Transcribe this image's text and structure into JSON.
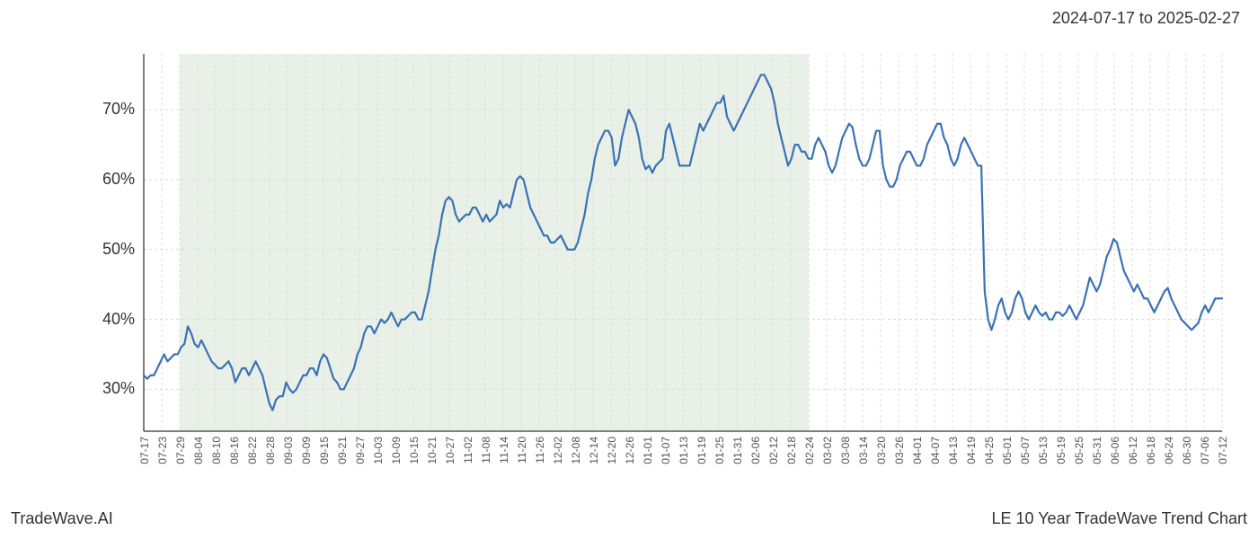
{
  "date_range_label": "2024-07-17 to 2025-02-27",
  "footer_left": "TradeWave.AI",
  "footer_right": "LE 10 Year TradeWave Trend Chart",
  "chart": {
    "type": "line",
    "background_color": "#ffffff",
    "shaded_region_color": "#dfeadd",
    "shaded_region_opacity": 0.7,
    "grid_color": "#dcdcdc",
    "grid_dash": "3,3",
    "axis_color": "#555555",
    "line_color": "#3a72b5",
    "line_width": 2.2,
    "y_axis": {
      "min": 24,
      "max": 78,
      "ticks": [
        30,
        40,
        50,
        60,
        70
      ],
      "tick_labels": [
        "30%",
        "40%",
        "50%",
        "60%",
        "70%"
      ],
      "label_fontsize": 18,
      "label_color": "#333333"
    },
    "x_axis": {
      "label_fontsize": 12,
      "label_color": "#555555",
      "tick_labels": [
        "07-17",
        "07-23",
        "07-29",
        "08-04",
        "08-10",
        "08-16",
        "08-22",
        "08-28",
        "09-03",
        "09-09",
        "09-15",
        "09-21",
        "09-27",
        "10-03",
        "10-09",
        "10-15",
        "10-21",
        "10-27",
        "11-02",
        "11-08",
        "11-14",
        "11-20",
        "11-26",
        "12-02",
        "12-08",
        "12-14",
        "12-20",
        "12-26",
        "01-01",
        "01-07",
        "01-13",
        "01-19",
        "01-25",
        "01-31",
        "02-06",
        "02-12",
        "02-18",
        "02-24",
        "03-02",
        "03-08",
        "03-14",
        "03-20",
        "03-26",
        "04-01",
        "04-07",
        "04-13",
        "04-19",
        "04-25",
        "05-01",
        "05-07",
        "05-13",
        "05-19",
        "05-25",
        "05-31",
        "06-06",
        "06-12",
        "06-18",
        "06-24",
        "06-30",
        "07-06",
        "07-12"
      ]
    },
    "shaded_start_index": 2,
    "shaded_end_index": 37,
    "series": [
      32,
      31.5,
      32,
      32,
      33,
      34,
      35,
      34,
      34.5,
      35,
      35,
      36,
      36.5,
      39,
      38,
      36.5,
      36,
      37,
      36,
      35,
      34,
      33.5,
      33,
      33,
      33.5,
      34,
      33,
      31,
      32,
      33,
      33,
      32,
      33,
      34,
      33,
      32,
      30,
      28,
      27,
      28.5,
      29,
      29,
      31,
      30,
      29.5,
      30,
      31,
      32,
      32,
      33,
      33,
      32,
      34,
      35,
      34.5,
      33,
      31.5,
      31,
      30,
      30,
      31,
      32,
      33,
      35,
      36,
      38,
      39,
      39,
      38,
      39,
      40,
      39.5,
      40,
      41,
      40,
      39,
      40,
      40,
      40.5,
      41,
      41,
      40,
      40,
      42,
      44,
      47,
      50,
      52,
      55,
      57,
      57.5,
      57,
      55,
      54,
      54.5,
      55,
      55,
      56,
      56,
      55,
      54,
      55,
      54,
      54.5,
      55,
      57,
      56,
      56.5,
      56,
      58,
      60,
      60.5,
      60,
      58,
      56,
      55,
      54,
      53,
      52,
      52,
      51,
      51,
      51.5,
      52,
      51,
      50,
      50,
      50,
      51,
      53,
      55,
      58,
      60,
      63,
      65,
      66,
      67,
      67,
      66,
      62,
      63,
      66,
      68,
      70,
      69,
      68,
      66,
      63,
      61.5,
      62,
      61,
      62,
      62.5,
      63,
      67,
      68,
      66,
      64,
      62,
      62,
      62,
      62,
      64,
      66,
      68,
      67,
      68,
      69,
      70,
      71,
      71,
      72,
      69,
      68,
      67,
      68,
      69,
      70,
      71,
      72,
      73,
      74,
      75,
      75,
      74,
      73,
      71,
      68,
      66,
      64,
      62,
      63,
      65,
      65,
      64,
      64,
      63,
      63,
      65,
      66,
      65,
      64,
      62,
      61,
      62,
      64,
      66,
      67,
      68,
      67.5,
      65,
      63,
      62,
      62,
      63,
      65,
      67,
      67,
      62,
      60,
      59,
      59,
      60,
      62,
      63,
      64,
      64,
      63,
      62,
      62,
      63,
      65,
      66,
      67,
      68,
      68,
      66,
      65,
      63,
      62,
      63,
      65,
      66,
      65,
      64,
      63,
      62,
      62,
      44,
      40,
      38.5,
      40,
      42,
      43,
      41,
      40,
      41,
      43,
      44,
      43,
      41,
      40,
      41,
      42,
      41,
      40.5,
      41,
      40,
      40,
      41,
      41,
      40.5,
      41,
      42,
      41,
      40,
      41,
      42,
      44,
      46,
      45,
      44,
      45,
      47,
      49,
      50,
      51.5,
      51,
      49,
      47,
      46,
      45,
      44,
      45,
      44,
      43,
      43,
      42,
      41,
      42,
      43,
      44,
      44.5,
      43,
      42,
      41,
      40,
      39.5,
      39,
      38.5,
      39,
      39.5,
      41,
      42,
      41,
      42,
      43,
      43,
      43
    ]
  }
}
